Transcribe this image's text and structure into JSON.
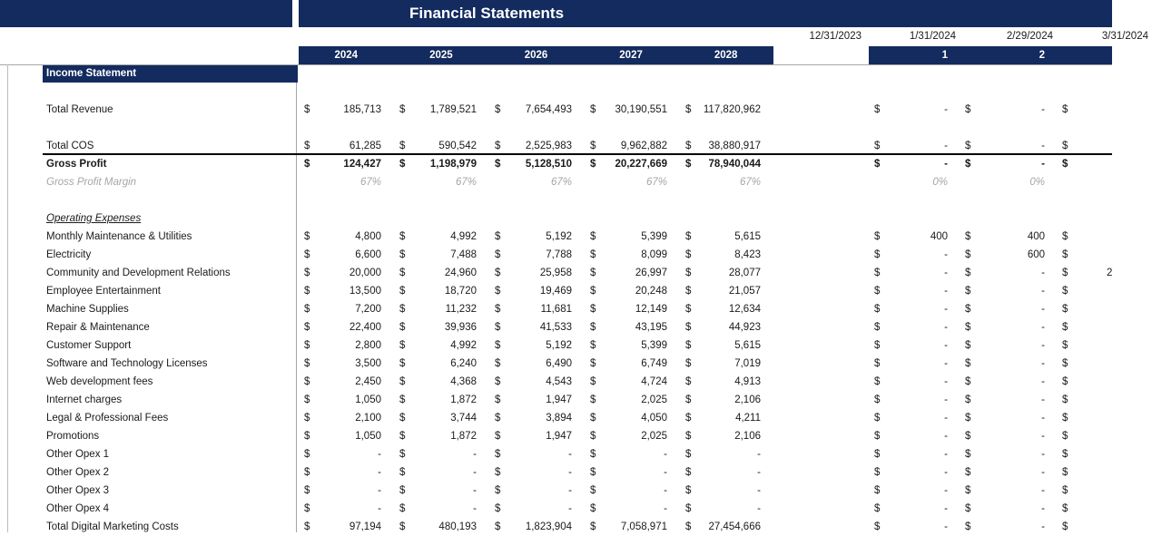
{
  "title": "Financial Statements",
  "section_header": "Income Statement",
  "currency_symbol": "$",
  "colors": {
    "header_navy": "#132b5e",
    "text": "#1a1a1a",
    "muted_gray": "#a6a6a6",
    "grid_gray": "#a6a6a6",
    "strong_border": "#000000"
  },
  "year_columns": [
    "2024",
    "2025",
    "2026",
    "2027",
    "2028"
  ],
  "date_columns": [
    "12/31/2023",
    "1/31/2024",
    "2/29/2024",
    "3/31/2024"
  ],
  "period_numbers": [
    "1",
    "2"
  ],
  "rows": [
    {
      "type": "blank"
    },
    {
      "type": "money",
      "label": "Total Revenue",
      "years": [
        "185,713",
        "1,789,521",
        "7,654,493",
        "30,190,551",
        "117,820,962"
      ],
      "months": [
        "-",
        "-"
      ]
    },
    {
      "type": "blank"
    },
    {
      "type": "money",
      "label": "Total COS",
      "years": [
        "61,285",
        "590,542",
        "2,525,983",
        "9,962,882",
        "38,880,917"
      ],
      "months": [
        "-",
        "-"
      ],
      "border_bottom": true
    },
    {
      "type": "money",
      "label": "Gross Profit",
      "bold": true,
      "years": [
        "124,427",
        "1,198,979",
        "5,128,510",
        "20,227,669",
        "78,940,044"
      ],
      "months": [
        "-",
        "-"
      ]
    },
    {
      "type": "percent",
      "label": "Gross Profit Margin",
      "years": [
        "67%",
        "67%",
        "67%",
        "67%",
        "67%"
      ],
      "months": [
        "0%",
        "0%"
      ]
    },
    {
      "type": "blank"
    },
    {
      "type": "heading",
      "label": "Operating Expenses"
    },
    {
      "type": "money",
      "label": "Monthly Maintenance & Utilities",
      "years": [
        "4,800",
        "4,992",
        "5,192",
        "5,399",
        "5,615"
      ],
      "months": [
        "400",
        "400"
      ]
    },
    {
      "type": "money",
      "label": "Electricity",
      "years": [
        "6,600",
        "7,488",
        "7,788",
        "8,099",
        "8,423"
      ],
      "months": [
        "-",
        "600"
      ]
    },
    {
      "type": "money",
      "label": "Community and Development Relations",
      "years": [
        "20,000",
        "24,960",
        "25,958",
        "26,997",
        "28,077"
      ],
      "months": [
        "-",
        "-"
      ],
      "month3_partial": "2"
    },
    {
      "type": "money",
      "label": "Employee Entertainment",
      "years": [
        "13,500",
        "18,720",
        "19,469",
        "20,248",
        "21,057"
      ],
      "months": [
        "-",
        "-"
      ]
    },
    {
      "type": "money",
      "label": "Machine Supplies",
      "years": [
        "7,200",
        "11,232",
        "11,681",
        "12,149",
        "12,634"
      ],
      "months": [
        "-",
        "-"
      ]
    },
    {
      "type": "money",
      "label": "Repair & Maintenance",
      "years": [
        "22,400",
        "39,936",
        "41,533",
        "43,195",
        "44,923"
      ],
      "months": [
        "-",
        "-"
      ]
    },
    {
      "type": "money",
      "label": "Customer Support",
      "years": [
        "2,800",
        "4,992",
        "5,192",
        "5,399",
        "5,615"
      ],
      "months": [
        "-",
        "-"
      ]
    },
    {
      "type": "money",
      "label": "Software and Technology Licenses",
      "years": [
        "3,500",
        "6,240",
        "6,490",
        "6,749",
        "7,019"
      ],
      "months": [
        "-",
        "-"
      ]
    },
    {
      "type": "money",
      "label": "Web development fees",
      "years": [
        "2,450",
        "4,368",
        "4,543",
        "4,724",
        "4,913"
      ],
      "months": [
        "-",
        "-"
      ]
    },
    {
      "type": "money",
      "label": "Internet charges",
      "years": [
        "1,050",
        "1,872",
        "1,947",
        "2,025",
        "2,106"
      ],
      "months": [
        "-",
        "-"
      ]
    },
    {
      "type": "money",
      "label": "Legal & Professional Fees",
      "years": [
        "2,100",
        "3,744",
        "3,894",
        "4,050",
        "4,211"
      ],
      "months": [
        "-",
        "-"
      ]
    },
    {
      "type": "money",
      "label": "Promotions",
      "years": [
        "1,050",
        "1,872",
        "1,947",
        "2,025",
        "2,106"
      ],
      "months": [
        "-",
        "-"
      ]
    },
    {
      "type": "money",
      "label": "Other Opex 1",
      "years": [
        "-",
        "-",
        "-",
        "-",
        "-"
      ],
      "months": [
        "-",
        "-"
      ]
    },
    {
      "type": "money",
      "label": "Other Opex 2",
      "years": [
        "-",
        "-",
        "-",
        "-",
        "-"
      ],
      "months": [
        "-",
        "-"
      ]
    },
    {
      "type": "money",
      "label": "Other Opex 3",
      "years": [
        "-",
        "-",
        "-",
        "-",
        "-"
      ],
      "months": [
        "-",
        "-"
      ]
    },
    {
      "type": "money",
      "label": "Other Opex 4",
      "years": [
        "-",
        "-",
        "-",
        "-",
        "-"
      ],
      "months": [
        "-",
        "-"
      ]
    },
    {
      "type": "money",
      "label": "Total Digital Marketing Costs",
      "years": [
        "97,194",
        "480,193",
        "1,823,904",
        "7,058,971",
        "27,454,666"
      ],
      "months": [
        "-",
        "-"
      ]
    }
  ]
}
